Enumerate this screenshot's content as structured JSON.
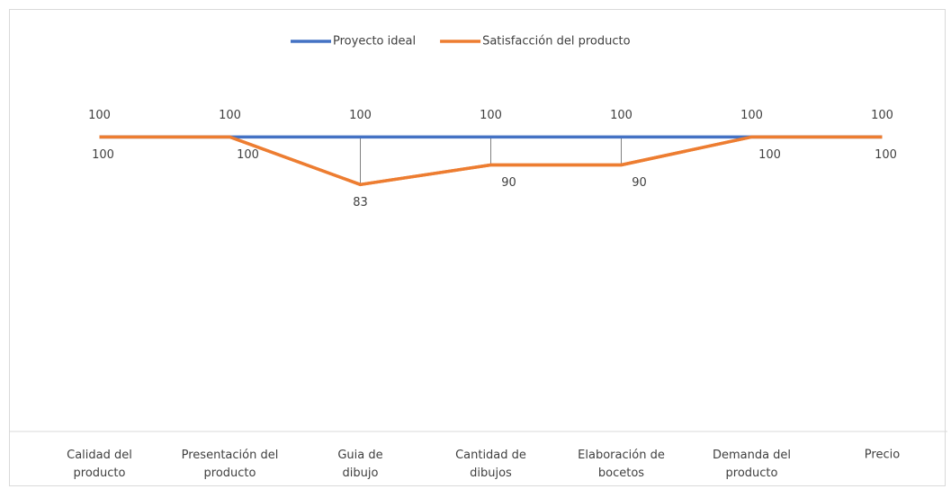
{
  "chart_data": {
    "type": "line",
    "categories": [
      "Calidad del producto",
      "Presentación del producto",
      "Guia de dibujo",
      "Cantidad de dibujos",
      "Elaboración de bocetos",
      "Demanda del producto",
      "Precio"
    ],
    "series": [
      {
        "name": "Proyecto ideal",
        "color": "#4472c4",
        "values": [
          100,
          100,
          100,
          100,
          100,
          100,
          100
        ]
      },
      {
        "name": "Satisfacción del producto",
        "color": "#ed7d31",
        "values": [
          100,
          100,
          83,
          90,
          90,
          100,
          100
        ]
      }
    ],
    "ylim": [
      0,
      120
    ],
    "legend": "top"
  }
}
